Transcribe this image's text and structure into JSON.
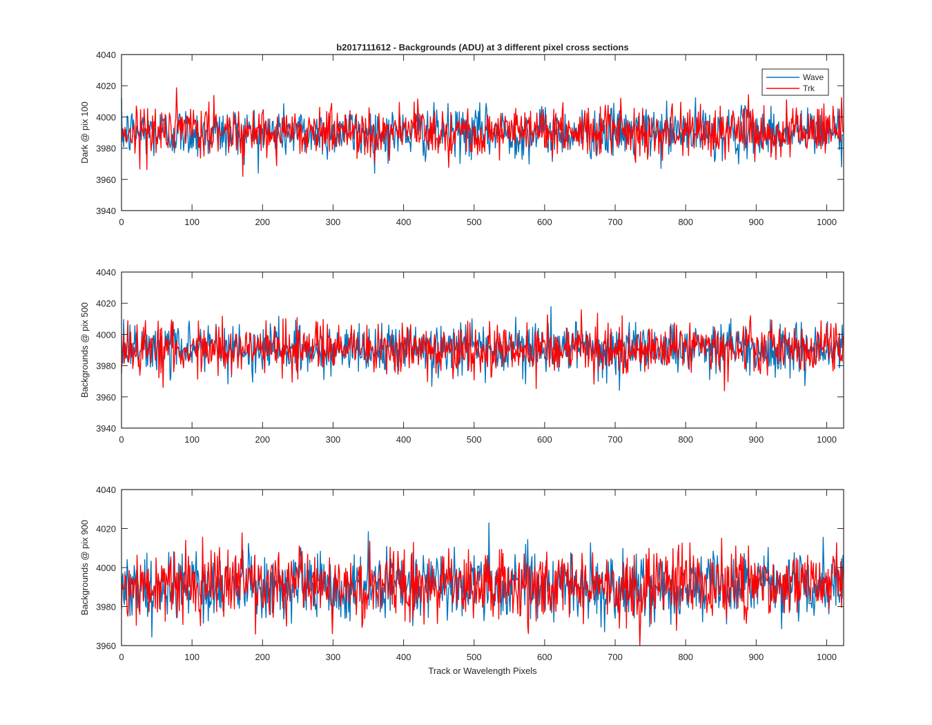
{
  "figure": {
    "title": "b2017111612 - Backgrounds (ADU) at 3 different pixel cross sections",
    "xlabel": "Track or Wavelength Pixels"
  },
  "colors": {
    "wave": "#0072BD",
    "trk": "#FF0000",
    "axis": "#262626",
    "background": "#ffffff"
  },
  "chart_data": [
    {
      "type": "line",
      "title": "b2017111612 - Backgrounds (ADU) at 3 different pixel cross sections",
      "xlabel": "",
      "ylabel": "Dark @ pix 100",
      "xlim": [
        0,
        1024
      ],
      "ylim": [
        3940,
        4040
      ],
      "xticks": [
        0,
        100,
        200,
        300,
        400,
        500,
        600,
        700,
        800,
        900,
        1000
      ],
      "yticks": [
        3940,
        3960,
        3980,
        4000,
        4020,
        4040
      ],
      "legend": {
        "position": "top-right",
        "entries": [
          "Wave",
          "Trk"
        ]
      },
      "grid": false,
      "series": [
        {
          "name": "Wave",
          "color": "#0072BD",
          "n_points": 1024,
          "mean": 3990,
          "std": 8,
          "range": [
            3964,
            4025
          ]
        },
        {
          "name": "Trk",
          "color": "#FF0000",
          "n_points": 1024,
          "mean": 3991,
          "std": 8,
          "range": [
            3958,
            4024
          ]
        }
      ]
    },
    {
      "type": "line",
      "xlabel": "",
      "ylabel": "Backgrounds @ pix 500",
      "xlim": [
        0,
        1024
      ],
      "ylim": [
        3940,
        4040
      ],
      "xticks": [
        0,
        100,
        200,
        300,
        400,
        500,
        600,
        700,
        800,
        900,
        1000
      ],
      "yticks": [
        3940,
        3960,
        3980,
        4000,
        4020,
        4040
      ],
      "grid": false,
      "series": [
        {
          "name": "Wave",
          "color": "#0072BD",
          "n_points": 1024,
          "mean": 3991,
          "std": 8,
          "range": [
            3957,
            4020
          ]
        },
        {
          "name": "Trk",
          "color": "#FF0000",
          "n_points": 1024,
          "mean": 3991,
          "std": 8,
          "range": [
            3955,
            4026
          ]
        }
      ]
    },
    {
      "type": "line",
      "xlabel": "Track or Wavelength Pixels",
      "ylabel": "Backgrounds @ pix 900",
      "xlim": [
        0,
        1024
      ],
      "ylim": [
        3960,
        4040
      ],
      "xticks": [
        0,
        100,
        200,
        300,
        400,
        500,
        600,
        700,
        800,
        900,
        1000
      ],
      "yticks": [
        3960,
        3980,
        4000,
        4020,
        4040
      ],
      "grid": false,
      "series": [
        {
          "name": "Wave",
          "color": "#0072BD",
          "n_points": 1024,
          "mean": 3991,
          "std": 9,
          "range": [
            3962,
            4027
          ]
        },
        {
          "name": "Trk",
          "color": "#FF0000",
          "n_points": 1024,
          "mean": 3991,
          "std": 9,
          "range": [
            3960,
            4022
          ]
        }
      ]
    }
  ]
}
